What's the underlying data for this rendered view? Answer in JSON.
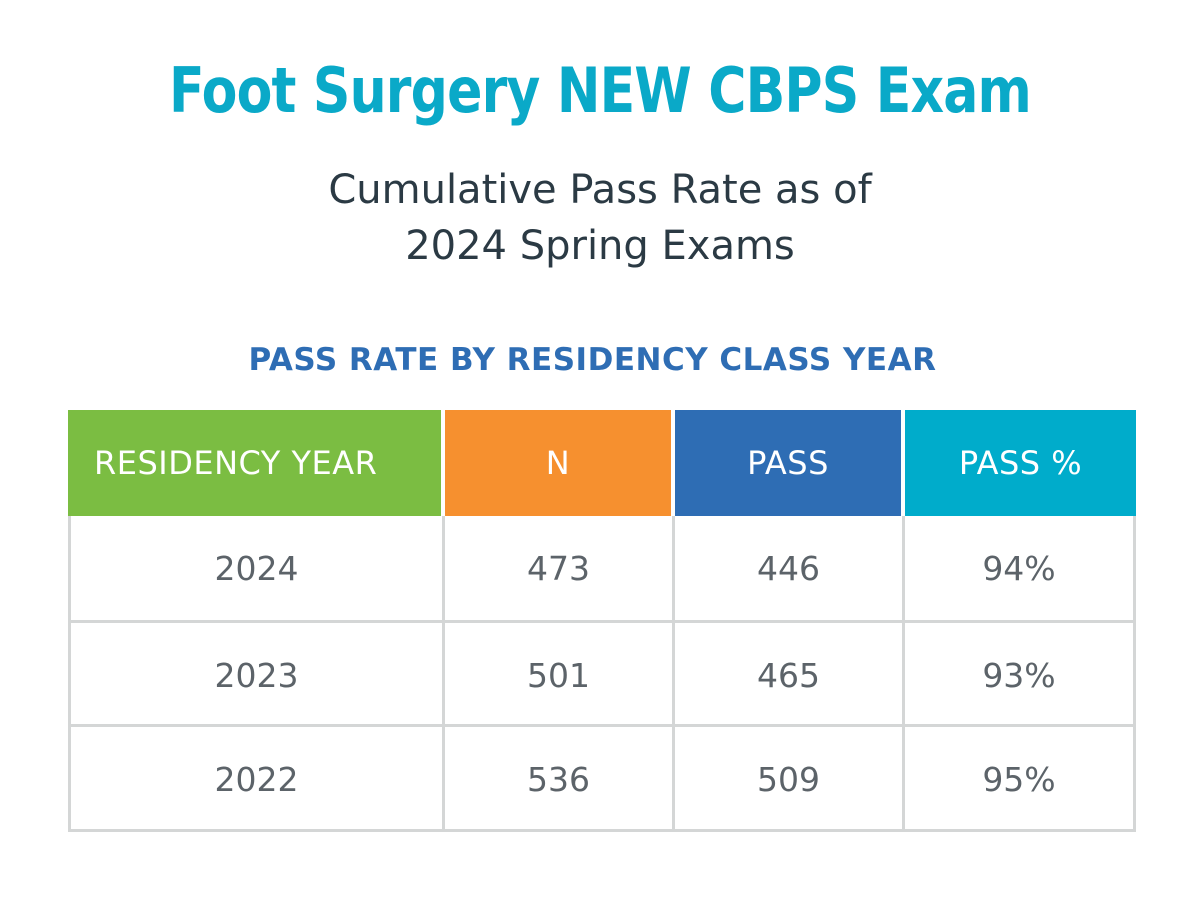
{
  "title": "Foot Surgery NEW CBPS Exam",
  "subtitle_lines": [
    "Cumulative Pass Rate as of",
    "2024 Spring Exams"
  ],
  "colors": {
    "title": "#0aa9c8",
    "subtitle": "#2b3a44",
    "caption": "#2e6db4",
    "header_residency_year": "#7bbd42",
    "header_n": "#f6902f",
    "header_pass": "#2e6db4",
    "header_pass_pct": "#00accb"
  },
  "chart_data": {
    "type": "table",
    "title": "PASS RATE BY RESIDENCY CLASS YEAR",
    "columns": [
      "RESIDENCY YEAR",
      "N",
      "PASS",
      "PASS %"
    ],
    "rows": [
      [
        "2024",
        "473",
        "446",
        "94%"
      ],
      [
        "2023",
        "501",
        "465",
        "93%"
      ],
      [
        "2022",
        "536",
        "509",
        "95%"
      ]
    ]
  }
}
